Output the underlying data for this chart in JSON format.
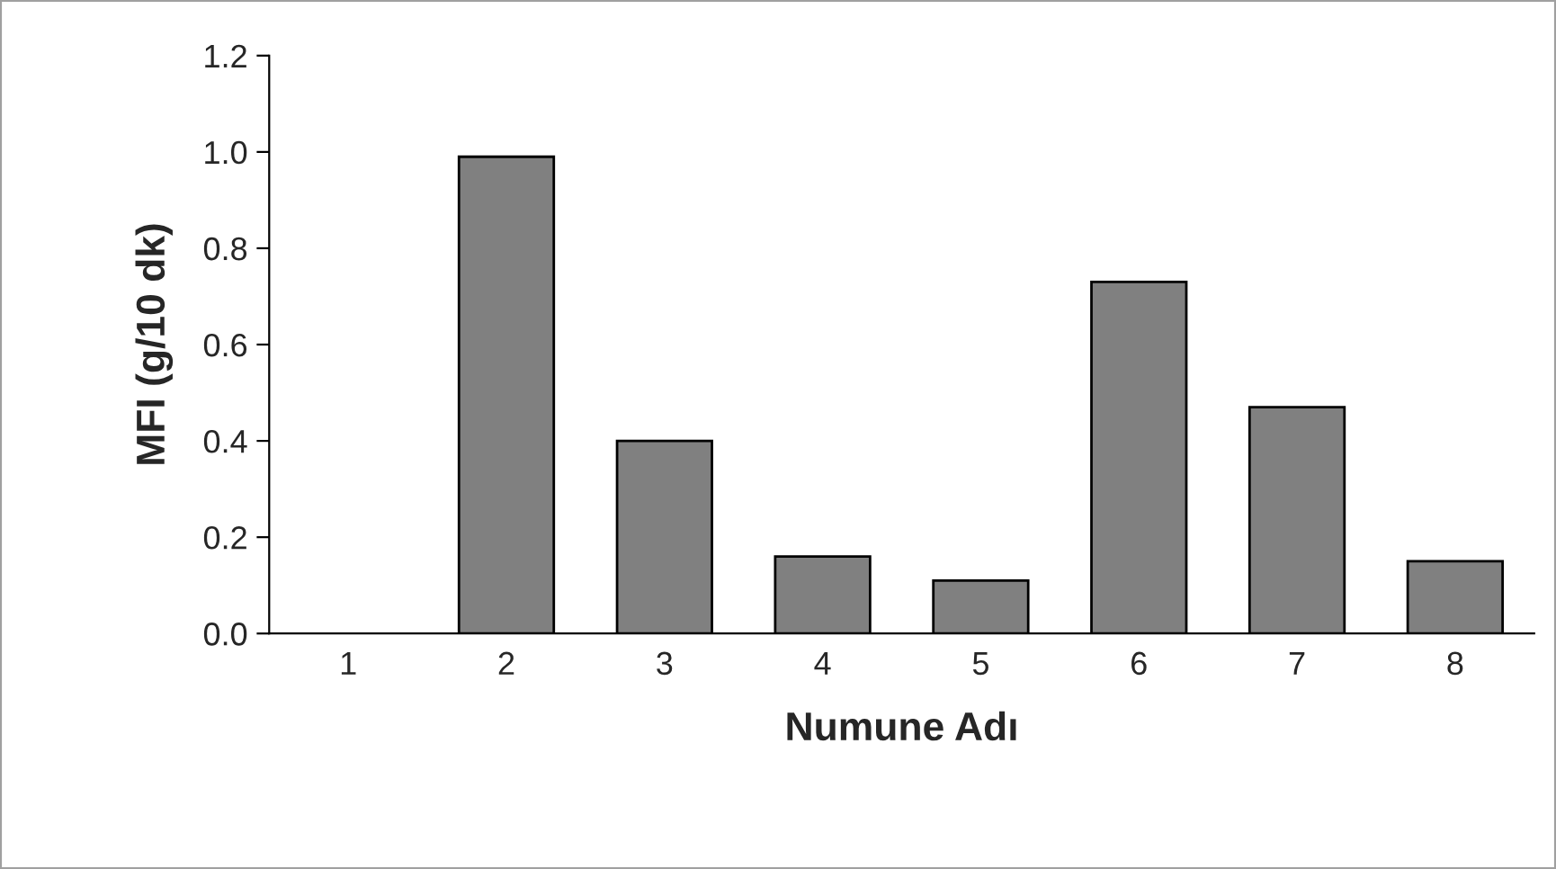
{
  "chart_data": {
    "type": "bar",
    "xlabel": "Numune Adı",
    "ylabel": "MFI (g/10 dk)",
    "categories": [
      "1",
      "2",
      "3",
      "4",
      "5",
      "6",
      "7",
      "8"
    ],
    "values": [
      0,
      0.99,
      0.4,
      0.16,
      0.11,
      0.73,
      0.47,
      0.15
    ],
    "color": "#808080",
    "ylim": [
      0,
      1.2
    ],
    "yticks": [
      {
        "value": 0,
        "label": "0.0"
      },
      {
        "value": 0.2,
        "label": "0.2"
      },
      {
        "value": 0.4,
        "label": "0.4"
      },
      {
        "value": 0.6,
        "label": "0.6"
      },
      {
        "value": 0.8,
        "label": "0.8"
      },
      {
        "value": 1.0,
        "label": "1.0"
      },
      {
        "value": 1.2,
        "label": "1.2"
      }
    ],
    "grid": false,
    "legend": false
  }
}
